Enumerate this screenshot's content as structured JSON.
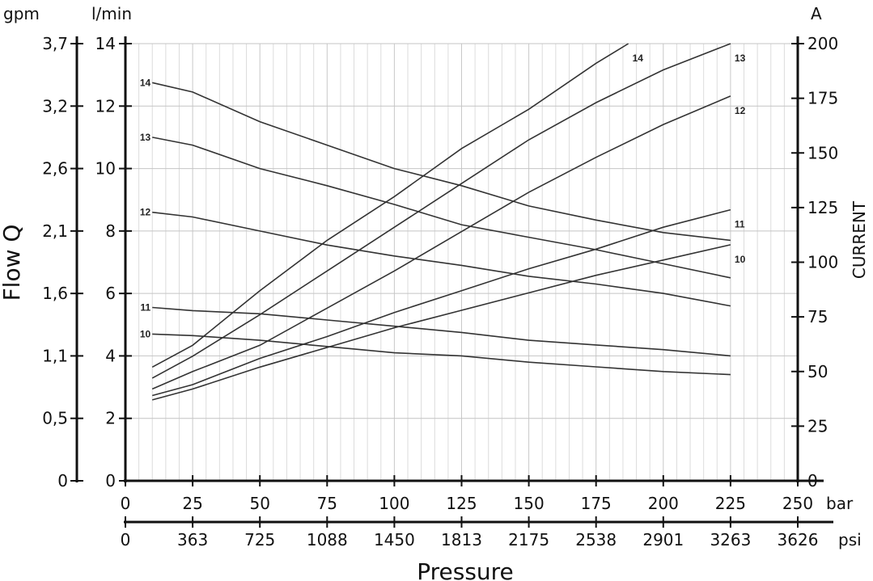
{
  "chart_data": {
    "type": "line",
    "xlabel": "Pressure",
    "ylabel": "Flow Q",
    "ylabel_right": "CURRENT",
    "x_axis": {
      "unit": "bar",
      "range": [
        0,
        250
      ],
      "ticks": [
        0,
        25,
        50,
        75,
        100,
        125,
        150,
        175,
        200,
        225,
        250
      ],
      "tick_labels": [
        "0",
        "25",
        "50",
        "75",
        "100",
        "125",
        "150",
        "175",
        "200",
        "225",
        "250"
      ]
    },
    "x_axis_secondary": {
      "unit": "psi",
      "tick_labels": [
        "0",
        "363",
        "725",
        "1088",
        "1450",
        "1813",
        "2175",
        "2538",
        "2901",
        "3263",
        "3626"
      ]
    },
    "y_axis_lmin": {
      "unit": "l/min",
      "range": [
        0,
        14
      ],
      "ticks": [
        0,
        2,
        4,
        6,
        8,
        10,
        12,
        14
      ],
      "tick_labels": [
        "0",
        "2",
        "4",
        "6",
        "8",
        "10",
        "12",
        "14"
      ]
    },
    "y_axis_gpm": {
      "unit": "gpm",
      "tick_labels": [
        "0",
        "0,5",
        "1,1",
        "1,6",
        "2,1",
        "2,6",
        "3,2",
        "3,7"
      ]
    },
    "y_axis_right": {
      "unit": "A",
      "range": [
        0,
        200
      ],
      "ticks": [
        0,
        25,
        50,
        75,
        100,
        125,
        150,
        175,
        200
      ],
      "tick_labels": [
        "0",
        "25",
        "50",
        "75",
        "100",
        "125",
        "150",
        "175",
        "200"
      ]
    },
    "grid": true,
    "flow_series": [
      {
        "name": "14",
        "points": [
          [
            10,
            12.75
          ],
          [
            25,
            12.45
          ],
          [
            50,
            11.5
          ],
          [
            75,
            10.75
          ],
          [
            100,
            10.0
          ],
          [
            125,
            9.45
          ],
          [
            150,
            8.8
          ],
          [
            175,
            8.35
          ],
          [
            200,
            7.95
          ],
          [
            225,
            7.7
          ]
        ]
      },
      {
        "name": "13",
        "points": [
          [
            10,
            11.0
          ],
          [
            25,
            10.75
          ],
          [
            50,
            10.0
          ],
          [
            75,
            9.45
          ],
          [
            100,
            8.85
          ],
          [
            125,
            8.2
          ],
          [
            150,
            7.8
          ],
          [
            175,
            7.4
          ],
          [
            200,
            6.95
          ],
          [
            225,
            6.5
          ]
        ]
      },
      {
        "name": "12",
        "points": [
          [
            10,
            8.6
          ],
          [
            25,
            8.45
          ],
          [
            50,
            8.0
          ],
          [
            75,
            7.55
          ],
          [
            100,
            7.2
          ],
          [
            125,
            6.9
          ],
          [
            150,
            6.55
          ],
          [
            175,
            6.3
          ],
          [
            200,
            6.0
          ],
          [
            225,
            5.6
          ]
        ]
      },
      {
        "name": "11",
        "points": [
          [
            10,
            5.55
          ],
          [
            25,
            5.45
          ],
          [
            50,
            5.35
          ],
          [
            75,
            5.15
          ],
          [
            100,
            4.95
          ],
          [
            125,
            4.75
          ],
          [
            150,
            4.5
          ],
          [
            175,
            4.35
          ],
          [
            200,
            4.2
          ],
          [
            225,
            4.0
          ]
        ]
      },
      {
        "name": "10",
        "points": [
          [
            10,
            4.7
          ],
          [
            25,
            4.65
          ],
          [
            50,
            4.5
          ],
          [
            75,
            4.3
          ],
          [
            100,
            4.1
          ],
          [
            125,
            4.0
          ],
          [
            150,
            3.8
          ],
          [
            175,
            3.65
          ],
          [
            200,
            3.5
          ],
          [
            225,
            3.4
          ]
        ]
      }
    ],
    "current_series": [
      {
        "name": "14",
        "points": [
          [
            10,
            52
          ],
          [
            25,
            62
          ],
          [
            50,
            87
          ],
          [
            75,
            110
          ],
          [
            100,
            130
          ],
          [
            125,
            152
          ],
          [
            150,
            170
          ],
          [
            175,
            191
          ],
          [
            187,
            200
          ]
        ]
      },
      {
        "name": "13",
        "points": [
          [
            10,
            47
          ],
          [
            25,
            57
          ],
          [
            50,
            76
          ],
          [
            75,
            96
          ],
          [
            100,
            116
          ],
          [
            125,
            136
          ],
          [
            150,
            156
          ],
          [
            175,
            173
          ],
          [
            200,
            188
          ],
          [
            225,
            200
          ]
        ]
      },
      {
        "name": "12",
        "points": [
          [
            10,
            42
          ],
          [
            25,
            50
          ],
          [
            50,
            62
          ],
          [
            75,
            79
          ],
          [
            100,
            96
          ],
          [
            125,
            114
          ],
          [
            150,
            132
          ],
          [
            175,
            148
          ],
          [
            200,
            163
          ],
          [
            225,
            176
          ]
        ]
      },
      {
        "name": "11",
        "points": [
          [
            10,
            39
          ],
          [
            25,
            44
          ],
          [
            50,
            56
          ],
          [
            75,
            66
          ],
          [
            100,
            77
          ],
          [
            125,
            87
          ],
          [
            150,
            97
          ],
          [
            175,
            106
          ],
          [
            200,
            116
          ],
          [
            225,
            124
          ]
        ]
      },
      {
        "name": "10",
        "points": [
          [
            10,
            37
          ],
          [
            25,
            42
          ],
          [
            50,
            52
          ],
          [
            75,
            61
          ],
          [
            100,
            70
          ],
          [
            125,
            78
          ],
          [
            150,
            86
          ],
          [
            175,
            94
          ],
          [
            200,
            101
          ],
          [
            225,
            108
          ]
        ]
      }
    ]
  }
}
